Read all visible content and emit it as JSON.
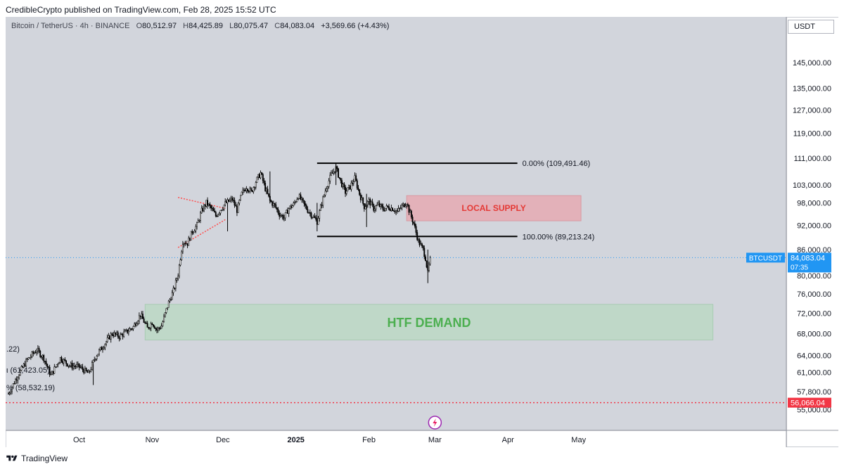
{
  "publish_line": "CredibleCrypto published on TradingView.com, Feb 28, 2025 15:52 UTC",
  "footer_brand": "TradingView",
  "legend": {
    "symbol": "Bitcoin / TetherUS · 4h · BINANCE",
    "open_key": "O",
    "open": "80,512.97",
    "high_key": "H",
    "high": "84,425.89",
    "low_key": "L",
    "low": "80,075.47",
    "close_key": "C",
    "close": "84,083.04",
    "change": "+3,569.66 (+4.43%)"
  },
  "scale_label": "USDT",
  "colors": {
    "background": "#d2d5dc",
    "candles": "#000000",
    "fib_lines": "#000000",
    "supply_zone": "#e8a4ad",
    "supply_text": "#e53935",
    "demand_zone": "#b8d8c2",
    "demand_text": "#4caf50",
    "triangle": "#ff4d4d",
    "price_badge": "#2196f3",
    "low_badge": "#f23645"
  },
  "chart_data": {
    "type": "candlestick",
    "title": "Bitcoin / TetherUS · 4h · BINANCE",
    "ylim": [
      53500,
      151000
    ],
    "y_scale": "log",
    "y_ticks": [
      {
        "v": 145000,
        "label": "145,000.00"
      },
      {
        "v": 135000,
        "label": "135,000.00"
      },
      {
        "v": 127000,
        "label": "127,000.00"
      },
      {
        "v": 119000,
        "label": "119,000.00"
      },
      {
        "v": 111000,
        "label": "111,000.00"
      },
      {
        "v": 103000,
        "label": "103,000.00"
      },
      {
        "v": 98000,
        "label": "98,000.00"
      },
      {
        "v": 92000,
        "label": "92,000.00"
      },
      {
        "v": 86000,
        "label": "86,000.00"
      },
      {
        "v": 80000,
        "label": "80,000.00"
      },
      {
        "v": 76000,
        "label": "76,000.00"
      },
      {
        "v": 72000,
        "label": "72,000.00"
      },
      {
        "v": 68000,
        "label": "68,000.00"
      },
      {
        "v": 64000,
        "label": "64,000.00"
      },
      {
        "v": 61000,
        "label": "61,000.00"
      },
      {
        "v": 57800,
        "label": "57,800.00"
      },
      {
        "v": 55000,
        "label": "55,000.00"
      }
    ],
    "x_ticks": [
      {
        "t": 30,
        "label": "Oct"
      },
      {
        "t": 61,
        "label": "Nov"
      },
      {
        "t": 91,
        "label": "Dec"
      },
      {
        "t": 122,
        "label": "2025",
        "bold": true
      },
      {
        "t": 153,
        "label": "Feb"
      },
      {
        "t": 181,
        "label": "Mar"
      },
      {
        "t": 212,
        "label": "Apr"
      },
      {
        "t": 242,
        "label": "May"
      }
    ],
    "xlim": [
      0,
      313
    ],
    "price_path": [
      [
        0,
        57500
      ],
      [
        4,
        60500
      ],
      [
        8,
        63200
      ],
      [
        12,
        65000
      ],
      [
        15,
        63500
      ],
      [
        18,
        60500
      ],
      [
        22,
        63500
      ],
      [
        26,
        62200
      ],
      [
        30,
        62000
      ],
      [
        34,
        60800
      ],
      [
        37,
        63800
      ],
      [
        41,
        66200
      ],
      [
        44,
        68000
      ],
      [
        47,
        67500
      ],
      [
        50,
        68300
      ],
      [
        53,
        69300
      ],
      [
        56,
        71700
      ],
      [
        59,
        69000
      ],
      [
        61,
        70200
      ],
      [
        63,
        68700
      ],
      [
        65,
        69500
      ],
      [
        68,
        74200
      ],
      [
        70,
        76600
      ],
      [
        72,
        80300
      ],
      [
        74,
        88000
      ],
      [
        76,
        87500
      ],
      [
        78,
        90500
      ],
      [
        80,
        92000
      ],
      [
        82,
        95800
      ],
      [
        84,
        98000
      ],
      [
        86,
        96500
      ],
      [
        88,
        94500
      ],
      [
        90,
        96200
      ],
      [
        92,
        97800
      ],
      [
        95,
        99000
      ],
      [
        97,
        96000
      ],
      [
        99,
        100500
      ],
      [
        101,
        102500
      ],
      [
        103,
        101000
      ],
      [
        105,
        104000
      ],
      [
        107,
        106500
      ],
      [
        109,
        102000
      ],
      [
        111,
        98500
      ],
      [
        113,
        97200
      ],
      [
        115,
        95000
      ],
      [
        117,
        94000
      ],
      [
        119,
        96500
      ],
      [
        121,
        97500
      ],
      [
        123,
        100000
      ],
      [
        125,
        98000
      ],
      [
        127,
        96000
      ],
      [
        129,
        94500
      ],
      [
        131,
        93000
      ],
      [
        133,
        98000
      ],
      [
        135,
        102500
      ],
      [
        137,
        106000
      ],
      [
        139,
        108000
      ],
      [
        141,
        104000
      ],
      [
        143,
        101000
      ],
      [
        145,
        102500
      ],
      [
        147,
        105000
      ],
      [
        149,
        100500
      ],
      [
        151,
        97000
      ],
      [
        153,
        98500
      ],
      [
        155,
        96500
      ],
      [
        157,
        97500
      ],
      [
        159,
        96300
      ],
      [
        161,
        96800
      ],
      [
        163,
        96500
      ],
      [
        165,
        95600
      ],
      [
        167,
        97000
      ],
      [
        169,
        98200
      ],
      [
        170,
        96000
      ],
      [
        172,
        92500
      ],
      [
        174,
        88000
      ],
      [
        176,
        86000
      ],
      [
        177,
        84000
      ],
      [
        178,
        80500
      ],
      [
        179,
        84083
      ]
    ],
    "spikes": [
      {
        "t": 111,
        "hi": 107000,
        "lo": 98000
      },
      {
        "t": 131,
        "hi": 98000,
        "lo": 90500
      },
      {
        "t": 139,
        "hi": 109300,
        "lo": 103000
      },
      {
        "t": 152,
        "hi": 100500,
        "lo": 91600
      },
      {
        "t": 178,
        "hi": 86000,
        "lo": 78300
      },
      {
        "t": 93,
        "hi": 98000,
        "lo": 90500
      },
      {
        "t": 36,
        "hi": 62500,
        "lo": 58900
      }
    ],
    "fib_levels": [
      {
        "label": "0.00% (109,491.46)",
        "price": 109491.46,
        "t_start": 131,
        "t_end": 216
      },
      {
        "label": "100.00% (89,213.24)",
        "price": 89213.24,
        "t_start": 131,
        "t_end": 216
      }
    ],
    "partial_labels": [
      {
        "label": ".22)",
        "price": 65200
      },
      {
        "label": "ι (61,423.05)",
        "price": 61423
      },
      {
        "label": "% (58,532.19)",
        "price": 58532
      }
    ],
    "zones": [
      {
        "label": "LOCAL SUPPLY",
        "top": 100000,
        "bottom": 93200,
        "t_start": 169,
        "t_end": 243
      },
      {
        "label": "HTF DEMAND",
        "top": 73800,
        "bottom": 66800,
        "t_start": 58,
        "t_end": 299
      }
    ],
    "triangle": {
      "upper": [
        [
          72,
          99500
        ],
        [
          92,
          96500
        ]
      ],
      "lower": [
        [
          72,
          86500
        ],
        [
          92,
          93500
        ]
      ]
    },
    "current_price": {
      "value": 84083.04,
      "label": "84,083.04",
      "symbol": "BTCUSDT",
      "countdown": "07:35"
    },
    "low_line": {
      "value": 56066.04,
      "label": "56,066.04"
    }
  }
}
